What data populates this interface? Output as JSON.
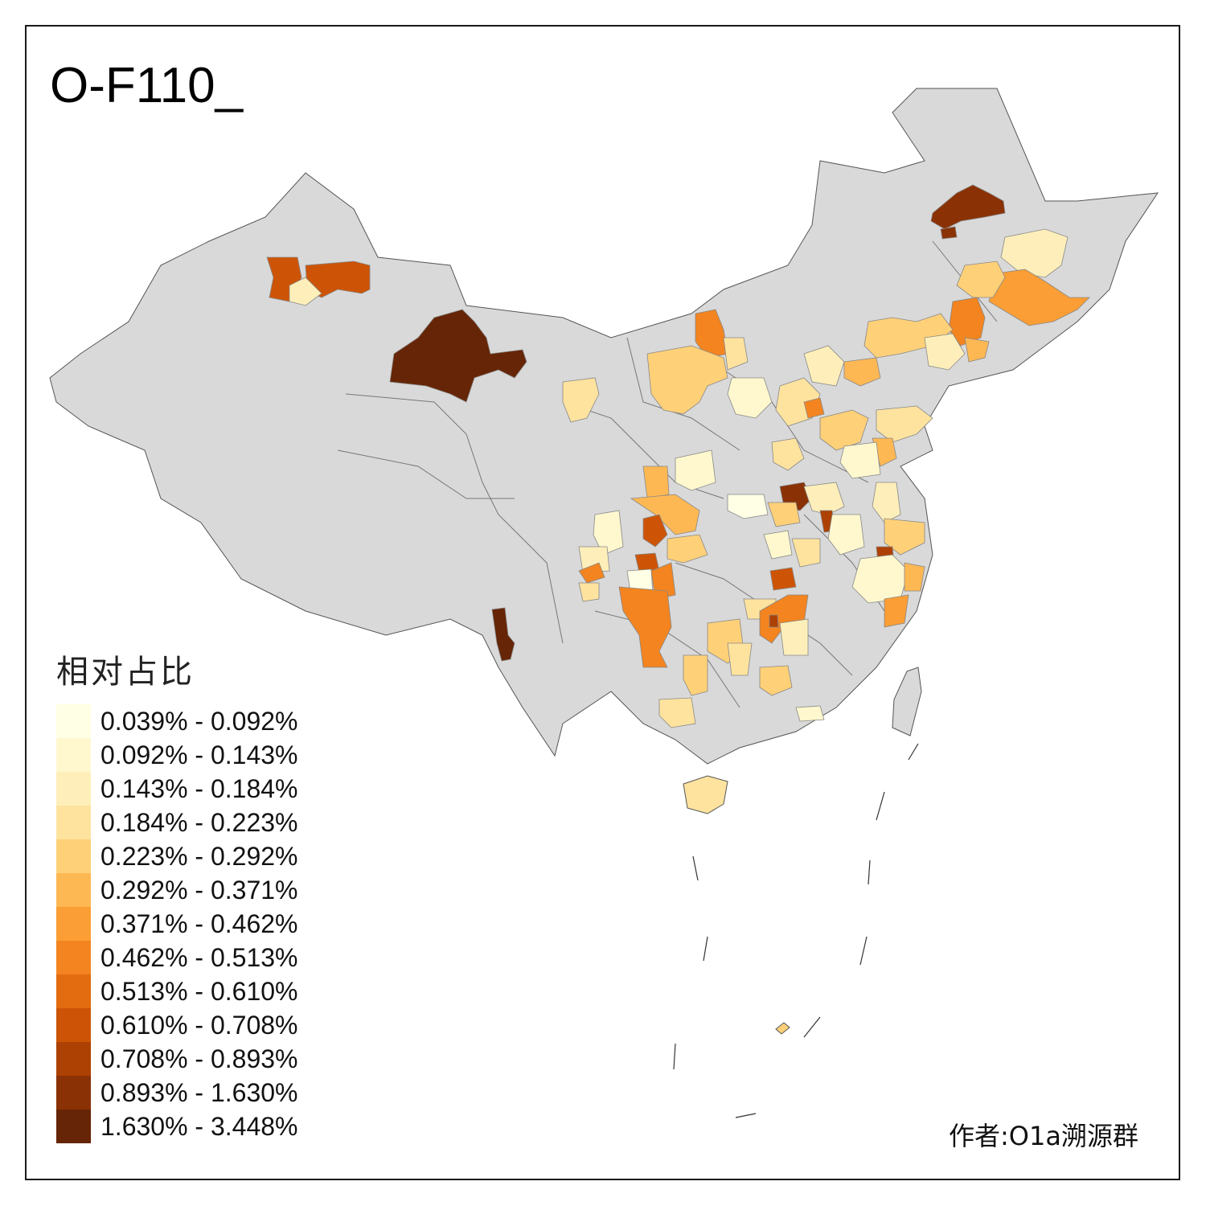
{
  "title": "O-F110_",
  "legend": {
    "title": "相对占比",
    "items": [
      {
        "label": "0.039% - 0.092%",
        "color": "#FFFFE5"
      },
      {
        "label": "0.092% - 0.143%",
        "color": "#FFF8CF"
      },
      {
        "label": "0.143% - 0.184%",
        "color": "#FEEFBA"
      },
      {
        "label": "0.184% - 0.223%",
        "color": "#FEE39F"
      },
      {
        "label": "0.223% - 0.292%",
        "color": "#FED078"
      },
      {
        "label": "0.292% - 0.371%",
        "color": "#FEB853"
      },
      {
        "label": "0.371% - 0.462%",
        "color": "#FB9E35"
      },
      {
        "label": "0.462% - 0.513%",
        "color": "#F3841F"
      },
      {
        "label": "0.513% - 0.610%",
        "color": "#E36B10"
      },
      {
        "label": "0.610% - 0.708%",
        "color": "#CD5406"
      },
      {
        "label": "0.708% - 0.893%",
        "color": "#AD4103"
      },
      {
        "label": "0.893% - 1.630%",
        "color": "#8A3205"
      },
      {
        "label": "1.630% - 3.448%",
        "color": "#662506"
      }
    ]
  },
  "author": "作者:O1a溯源群",
  "colors": {
    "background": "#FFFFFF",
    "land": "#D9D9D9",
    "border": "#666666"
  }
}
